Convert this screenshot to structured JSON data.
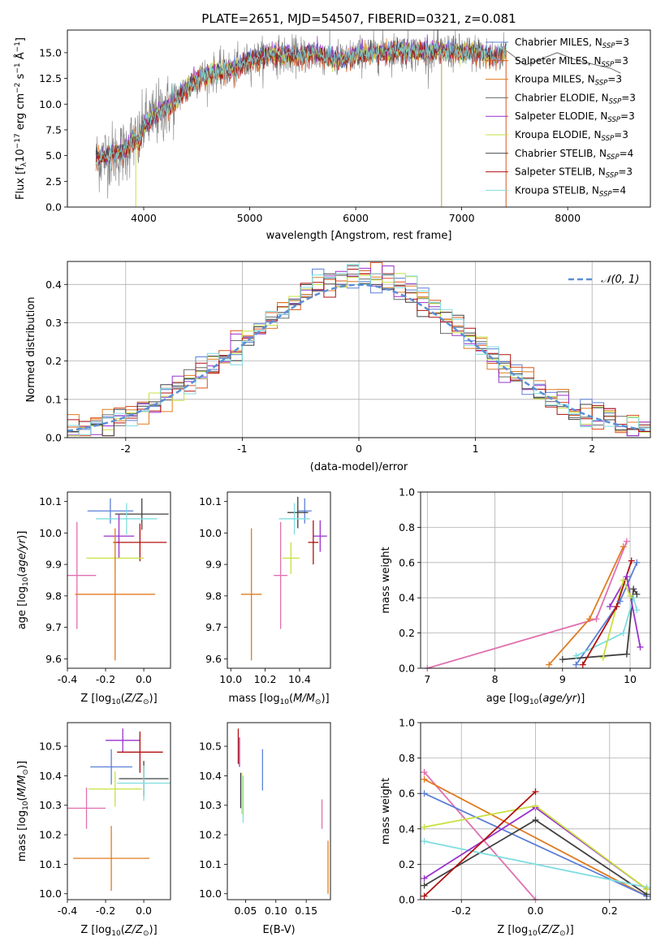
{
  "chart_data": [
    {
      "id": "spectrum",
      "type": "line",
      "title": "PLATE=2651, MJD=54507, FIBERID=0321, z=0.081",
      "xlabel": "wavelength [Angstrom, rest frame]",
      "ylabel": "Flux [f_λ 10^-17 erg cm^-2 s^-1 Å^-1]",
      "xlim": [
        3280,
        8780
      ],
      "ylim": [
        0,
        17.2
      ],
      "xticks": [
        4000,
        5000,
        6000,
        7000,
        8000
      ],
      "yticks": [
        0.0,
        2.5,
        5.0,
        7.5,
        10.0,
        12.5,
        15.0
      ],
      "grid": false,
      "legend_position": "right",
      "legend": [
        {
          "label": "Chabrier MILES, N_SSP=3",
          "color": "#5b7fd6"
        },
        {
          "label": "Salpeter MILES, N_SSP=3",
          "color": "#d9541e"
        },
        {
          "label": "Kroupa MILES, N_SSP=3",
          "color": "#e07b20"
        },
        {
          "label": "Chabrier ELODIE, N_SSP=3",
          "color": "#6a6a6a"
        },
        {
          "label": "Salpeter ELODIE, N_SSP=3",
          "color": "#9932cc"
        },
        {
          "label": "Kroupa ELODIE, N_SSP=3",
          "color": "#c8e040"
        },
        {
          "label": "Chabrier STELIB, N_SSP=4",
          "color": "#404040"
        },
        {
          "label": "Salpeter STELIB, N_SSP=3",
          "color": "#b01010"
        },
        {
          "label": "Kroupa STELIB, N_SSP=4",
          "color": "#7fdde0"
        }
      ],
      "continuum": [
        [
          3550,
          4.6
        ],
        [
          3650,
          5.0
        ],
        [
          3800,
          5.3
        ],
        [
          3900,
          6.5
        ],
        [
          3950,
          6.2
        ],
        [
          4000,
          8.0
        ],
        [
          4100,
          8.8
        ],
        [
          4200,
          9.5
        ],
        [
          4300,
          10.3
        ],
        [
          4350,
          11.0
        ],
        [
          4500,
          12.5
        ],
        [
          4700,
          13.2
        ],
        [
          4860,
          13.5
        ],
        [
          5000,
          14.2
        ],
        [
          5200,
          14.8
        ],
        [
          5400,
          14.7
        ],
        [
          5600,
          14.9
        ],
        [
          5800,
          14.5
        ],
        [
          5900,
          14.3
        ],
        [
          6000,
          14.8
        ],
        [
          6200,
          15.0
        ],
        [
          6400,
          15.2
        ],
        [
          6563,
          15.0
        ],
        [
          6800,
          15.2
        ],
        [
          7000,
          15.0
        ],
        [
          7200,
          15.0
        ],
        [
          7300,
          14.5
        ],
        [
          7420,
          15.2
        ]
      ],
      "model_tail": [
        [
          7420,
          15.2
        ],
        [
          7600,
          13.8
        ],
        [
          7900,
          15.0
        ],
        [
          8100,
          14.2
        ],
        [
          8400,
          13.5
        ],
        [
          8500,
          13.0
        ]
      ]
    },
    {
      "id": "residuals",
      "type": "line",
      "xlabel": "(data-model)/error",
      "ylabel": "Normed distribution",
      "xlim": [
        -2.5,
        2.5
      ],
      "ylim": [
        0,
        0.46
      ],
      "xticks": [
        -2,
        -1,
        0,
        1,
        2
      ],
      "yticks": [
        0.0,
        0.1,
        0.2,
        0.3,
        0.4
      ],
      "grid": true,
      "legend_position": "top-right",
      "gaussian_label": "𝒩(0, 1)",
      "gaussian_color": "#5b8fd6"
    },
    {
      "id": "age_vs_Z",
      "type": "scatter",
      "xlabel": "Z [log10(Z/Z⊙)]",
      "ylabel": "age  [log10(age/yr)]",
      "xlim": [
        -0.4,
        0.14
      ],
      "ylim": [
        9.57,
        10.13
      ],
      "xticks": [
        -0.4,
        -0.2,
        0.0
      ],
      "yticks": [
        9.6,
        9.7,
        9.8,
        9.9,
        10.0,
        10.1
      ],
      "points": [
        {
          "x": -0.175,
          "y": 10.07,
          "xerr": 0.12,
          "yerr": 0.04,
          "color": "#5b7fd6"
        },
        {
          "x": -0.01,
          "y": 10.06,
          "xerr": 0.14,
          "yerr": 0.05,
          "color": "#404040"
        },
        {
          "x": -0.09,
          "y": 10.045,
          "xerr": 0.16,
          "yerr": 0.05,
          "color": "#7fdde0"
        },
        {
          "x": -0.13,
          "y": 9.99,
          "xerr": 0.08,
          "yerr": 0.07,
          "color": "#9932cc"
        },
        {
          "x": -0.02,
          "y": 9.97,
          "xerr": 0.14,
          "yerr": 0.06,
          "color": "#b01010"
        },
        {
          "x": -0.15,
          "y": 9.92,
          "xerr": 0.15,
          "yerr": 0.05,
          "color": "#c8e040"
        },
        {
          "x": -0.35,
          "y": 9.865,
          "xerr": 0.1,
          "yerr": 0.17,
          "color": "#e070b0"
        },
        {
          "x": -0.15,
          "y": 9.805,
          "xerr": 0.21,
          "yerr": 0.21,
          "color": "#e07b20"
        }
      ]
    },
    {
      "id": "age_vs_mass",
      "type": "scatter",
      "xlabel": "mass [log10(M/M⊙)]",
      "ylabel": "",
      "xlim": [
        9.98,
        10.58
      ],
      "ylim": [
        9.57,
        10.13
      ],
      "xticks": [
        10.0,
        10.2,
        10.4
      ],
      "yticks": [
        9.6,
        9.7,
        9.8,
        9.9,
        10.0,
        10.1
      ],
      "points": [
        {
          "x": 10.43,
          "y": 10.07,
          "xerr": 0.04,
          "yerr": 0.04,
          "color": "#5b7fd6"
        },
        {
          "x": 10.39,
          "y": 10.065,
          "xerr": 0.06,
          "yerr": 0.05,
          "color": "#404040"
        },
        {
          "x": 10.37,
          "y": 10.045,
          "xerr": 0.09,
          "yerr": 0.05,
          "color": "#7fdde0"
        },
        {
          "x": 10.52,
          "y": 9.99,
          "xerr": 0.04,
          "yerr": 0.05,
          "color": "#9932cc"
        },
        {
          "x": 10.48,
          "y": 9.97,
          "xerr": 0.03,
          "yerr": 0.07,
          "color": "#b01010"
        },
        {
          "x": 10.35,
          "y": 9.92,
          "xerr": 0.05,
          "yerr": 0.05,
          "color": "#c8e040"
        },
        {
          "x": 10.29,
          "y": 9.865,
          "xerr": 0.04,
          "yerr": 0.17,
          "color": "#e070b0"
        },
        {
          "x": 10.12,
          "y": 9.805,
          "xerr": 0.06,
          "yerr": 0.21,
          "color": "#e07b20"
        }
      ]
    },
    {
      "id": "massweight_vs_age",
      "type": "line",
      "xlabel": "age  [log10(age/yr)]",
      "ylabel": "mass weight",
      "xlim": [
        6.9,
        10.3
      ],
      "ylim": [
        0,
        1.0
      ],
      "xticks": [
        7,
        8,
        9,
        10
      ],
      "yticks": [
        0.0,
        0.2,
        0.4,
        0.6,
        0.8,
        1.0
      ],
      "grid": true,
      "series": [
        {
          "color": "#e070b0",
          "x": [
            7.0,
            9.5,
            9.95
          ],
          "y": [
            0.0,
            0.28,
            0.72
          ]
        },
        {
          "color": "#e07b20",
          "x": [
            8.8,
            9.4,
            9.9
          ],
          "y": [
            0.02,
            0.28,
            0.69
          ]
        },
        {
          "color": "#5b7fd6",
          "x": [
            9.2,
            9.85,
            10.1
          ],
          "y": [
            0.02,
            0.38,
            0.6
          ]
        },
        {
          "color": "#404040",
          "x": [
            9.0,
            9.95,
            10.05,
            10.1
          ],
          "y": [
            0.05,
            0.08,
            0.45,
            0.42
          ]
        },
        {
          "color": "#7fdde0",
          "x": [
            9.2,
            9.9,
            10.05,
            10.1
          ],
          "y": [
            0.07,
            0.2,
            0.4,
            0.33
          ]
        },
        {
          "color": "#9932cc",
          "x": [
            9.7,
            9.95,
            10.15
          ],
          "y": [
            0.35,
            0.52,
            0.12
          ]
        },
        {
          "color": "#c8e040",
          "x": [
            9.6,
            9.9,
            10.0
          ],
          "y": [
            0.06,
            0.5,
            0.41
          ]
        },
        {
          "color": "#b01010",
          "x": [
            9.3,
            9.8,
            10.02
          ],
          "y": [
            0.02,
            0.35,
            0.61
          ]
        }
      ]
    },
    {
      "id": "mass_vs_Z",
      "type": "scatter",
      "xlabel": "Z [log10(Z/Z⊙)]",
      "ylabel": "mass [log10(M/M⊙)]",
      "xlim": [
        -0.4,
        0.14
      ],
      "ylim": [
        9.98,
        10.58
      ],
      "xticks": [
        -0.4,
        -0.2,
        0.0
      ],
      "yticks": [
        10.0,
        10.1,
        10.2,
        10.3,
        10.4,
        10.5
      ],
      "points": [
        {
          "x": -0.11,
          "y": 10.52,
          "xerr": 0.09,
          "yerr": 0.04,
          "color": "#9932cc"
        },
        {
          "x": -0.02,
          "y": 10.48,
          "xerr": 0.12,
          "yerr": 0.07,
          "color": "#b01010"
        },
        {
          "x": -0.17,
          "y": 10.43,
          "xerr": 0.11,
          "yerr": 0.06,
          "color": "#5b7fd6"
        },
        {
          "x": 0.0,
          "y": 10.39,
          "xerr": 0.13,
          "yerr": 0.06,
          "color": "#404040"
        },
        {
          "x": 0.0,
          "y": 10.375,
          "xerr": 0.14,
          "yerr": 0.06,
          "color": "#7fdde0"
        },
        {
          "x": -0.15,
          "y": 10.355,
          "xerr": 0.14,
          "yerr": 0.06,
          "color": "#c8e040"
        },
        {
          "x": -0.3,
          "y": 10.29,
          "xerr": 0.1,
          "yerr": 0.07,
          "color": "#e070b0"
        },
        {
          "x": -0.17,
          "y": 10.12,
          "xerr": 0.2,
          "yerr": 0.11,
          "color": "#e07b20"
        }
      ]
    },
    {
      "id": "mass_vs_EBV",
      "type": "scatter",
      "xlabel": "E(B-V)",
      "ylabel": "",
      "xlim": [
        0.02,
        0.19
      ],
      "ylim": [
        9.98,
        10.58
      ],
      "xticks": [
        0.05,
        0.1,
        0.15
      ],
      "yticks": [
        10.0,
        10.1,
        10.2,
        10.3,
        10.4,
        10.5
      ],
      "points": [
        {
          "x": 0.038,
          "y": 10.5,
          "yerr": 0.06,
          "color": "#b01010"
        },
        {
          "x": 0.04,
          "y": 10.48,
          "yerr": 0.05,
          "color": "#9932cc"
        },
        {
          "x": 0.042,
          "y": 10.35,
          "yerr": 0.06,
          "color": "#404040"
        },
        {
          "x": 0.044,
          "y": 10.34,
          "yerr": 0.07,
          "color": "#c8e040"
        },
        {
          "x": 0.046,
          "y": 10.32,
          "yerr": 0.08,
          "color": "#7fdde0"
        },
        {
          "x": 0.078,
          "y": 10.42,
          "yerr": 0.07,
          "color": "#5b7fd6"
        },
        {
          "x": 0.176,
          "y": 10.27,
          "yerr": 0.05,
          "color": "#e070b0"
        },
        {
          "x": 0.186,
          "y": 10.09,
          "yerr": 0.09,
          "color": "#e07b20"
        }
      ]
    },
    {
      "id": "massweight_vs_Z",
      "type": "line",
      "xlabel": "Z [log10(Z/Z⊙)]",
      "ylabel": "mass weight",
      "xlim": [
        -0.31,
        0.31
      ],
      "ylim": [
        0,
        1.0
      ],
      "xticks": [
        -0.2,
        0.0,
        0.2
      ],
      "yticks": [
        0.0,
        0.2,
        0.4,
        0.6,
        0.8,
        1.0
      ],
      "grid": true,
      "series": [
        {
          "color": "#e070b0",
          "x": [
            -0.3,
            0.0
          ],
          "y": [
            0.72,
            0.0
          ]
        },
        {
          "color": "#e07b20",
          "x": [
            -0.3,
            0.3
          ],
          "y": [
            0.68,
            0.02
          ]
        },
        {
          "color": "#5b7fd6",
          "x": [
            -0.3,
            0.3
          ],
          "y": [
            0.6,
            0.02
          ]
        },
        {
          "color": "#404040",
          "x": [
            -0.3,
            0.0,
            0.3
          ],
          "y": [
            0.08,
            0.45,
            0.03
          ]
        },
        {
          "color": "#7fdde0",
          "x": [
            -0.3,
            0.3
          ],
          "y": [
            0.33,
            0.07
          ]
        },
        {
          "color": "#9932cc",
          "x": [
            -0.3,
            0.0,
            0.3
          ],
          "y": [
            0.12,
            0.52,
            0.06
          ]
        },
        {
          "color": "#c8e040",
          "x": [
            -0.3,
            0.0,
            0.3
          ],
          "y": [
            0.41,
            0.53,
            0.06
          ]
        },
        {
          "color": "#b01010",
          "x": [
            -0.3,
            0.0
          ],
          "y": [
            0.02,
            0.61
          ]
        }
      ]
    }
  ]
}
